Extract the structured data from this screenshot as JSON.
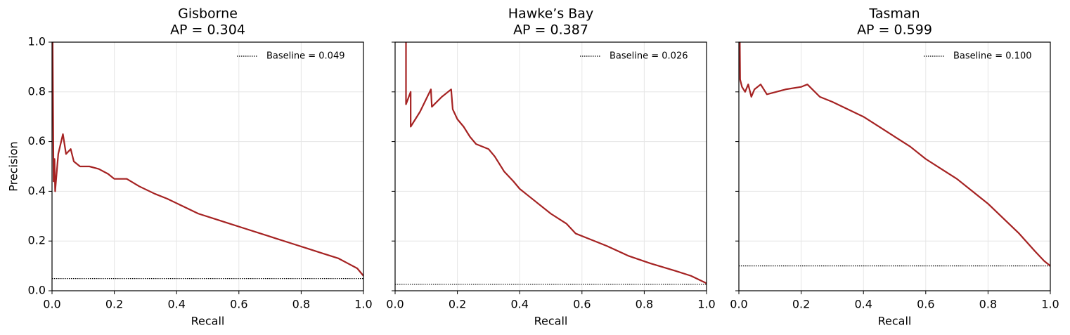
{
  "chart_data": [
    {
      "type": "line",
      "title": "Gisborne",
      "subtitle": "AP = 0.304",
      "xlabel": "Recall",
      "ylabel": "Precision",
      "xlim": [
        0,
        1
      ],
      "ylim": [
        0,
        1
      ],
      "xticks": [
        {
          "value": 0,
          "label": "0.0"
        },
        0.2,
        0.4,
        0.6,
        0.8,
        {
          "value": 1,
          "label": "1.0"
        }
      ],
      "yticks": [
        {
          "value": 0,
          "label": "0.0"
        },
        0.2,
        0.4,
        0.6,
        0.8,
        {
          "value": 1,
          "label": "1.0"
        }
      ],
      "grid": true,
      "legend": "upper right",
      "baseline": {
        "name": "Baseline = 0.049",
        "value": 0.049,
        "color": "#000000"
      },
      "series": [
        {
          "color": "#a52222",
          "x": [
            0.002,
            0.003,
            0.005,
            0.008,
            0.01,
            0.02,
            0.035,
            0.045,
            0.06,
            0.07,
            0.09,
            0.12,
            0.15,
            0.18,
            0.2,
            0.24,
            0.28,
            0.33,
            0.37,
            0.42,
            0.47,
            0.52,
            0.57,
            0.62,
            0.67,
            0.72,
            0.77,
            0.82,
            0.87,
            0.92,
            0.95,
            0.98,
            1.0
          ],
          "values": [
            1.0,
            0.8,
            0.44,
            0.53,
            0.4,
            0.55,
            0.63,
            0.55,
            0.57,
            0.52,
            0.5,
            0.5,
            0.49,
            0.47,
            0.45,
            0.45,
            0.42,
            0.39,
            0.37,
            0.34,
            0.31,
            0.29,
            0.27,
            0.25,
            0.23,
            0.21,
            0.19,
            0.17,
            0.15,
            0.13,
            0.11,
            0.09,
            0.06
          ]
        }
      ]
    },
    {
      "type": "line",
      "title": "Hawke’s Bay",
      "subtitle": "AP = 0.387",
      "xlabel": "Recall",
      "xlim": [
        0,
        1
      ],
      "ylim": [
        0,
        1
      ],
      "xticks": [
        {
          "value": 0,
          "label": "0.0"
        },
        0.2,
        0.4,
        0.6,
        0.8,
        {
          "value": 1,
          "label": "1.0"
        }
      ],
      "yticks": [
        0,
        0.2,
        0.4,
        0.6,
        0.8,
        1
      ],
      "ytick_labels": false,
      "grid": true,
      "legend": "upper right",
      "baseline": {
        "name": "Baseline = 0.026",
        "value": 0.026,
        "color": "#000000"
      },
      "series": [
        {
          "color": "#a52222",
          "x": [
            0.035,
            0.035,
            0.05,
            0.05,
            0.08,
            0.115,
            0.118,
            0.15,
            0.18,
            0.185,
            0.2,
            0.22,
            0.24,
            0.26,
            0.3,
            0.32,
            0.35,
            0.38,
            0.4,
            0.42,
            0.45,
            0.5,
            0.55,
            0.58,
            0.62,
            0.68,
            0.75,
            0.82,
            0.9,
            0.95,
            1.0
          ],
          "values": [
            1.0,
            0.75,
            0.8,
            0.66,
            0.72,
            0.81,
            0.74,
            0.78,
            0.81,
            0.73,
            0.69,
            0.66,
            0.62,
            0.59,
            0.57,
            0.54,
            0.48,
            0.44,
            0.41,
            0.39,
            0.36,
            0.31,
            0.27,
            0.23,
            0.21,
            0.18,
            0.14,
            0.11,
            0.08,
            0.06,
            0.03
          ]
        }
      ]
    },
    {
      "type": "line",
      "title": "Tasman",
      "subtitle": "AP = 0.599",
      "xlabel": "Recall",
      "xlim": [
        0,
        1
      ],
      "ylim": [
        0,
        1
      ],
      "xticks": [
        {
          "value": 0,
          "label": "0.0"
        },
        0.2,
        0.4,
        0.6,
        0.8,
        {
          "value": 1,
          "label": "1.0"
        }
      ],
      "yticks": [
        0,
        0.2,
        0.4,
        0.6,
        0.8,
        1
      ],
      "ytick_labels": false,
      "grid": true,
      "legend": "upper right",
      "baseline": {
        "name": "Baseline = 0.100",
        "value": 0.1,
        "color": "#000000"
      },
      "series": [
        {
          "color": "#a52222",
          "x": [
            0.003,
            0.004,
            0.01,
            0.02,
            0.03,
            0.04,
            0.05,
            0.07,
            0.09,
            0.12,
            0.15,
            0.2,
            0.22,
            0.26,
            0.3,
            0.35,
            0.4,
            0.45,
            0.5,
            0.55,
            0.6,
            0.65,
            0.7,
            0.75,
            0.8,
            0.85,
            0.9,
            0.95,
            0.98,
            1.0
          ],
          "values": [
            1.0,
            0.85,
            0.82,
            0.8,
            0.83,
            0.78,
            0.81,
            0.83,
            0.79,
            0.8,
            0.81,
            0.82,
            0.83,
            0.78,
            0.76,
            0.73,
            0.7,
            0.66,
            0.62,
            0.58,
            0.53,
            0.49,
            0.45,
            0.4,
            0.35,
            0.29,
            0.23,
            0.16,
            0.12,
            0.1
          ]
        }
      ]
    }
  ]
}
